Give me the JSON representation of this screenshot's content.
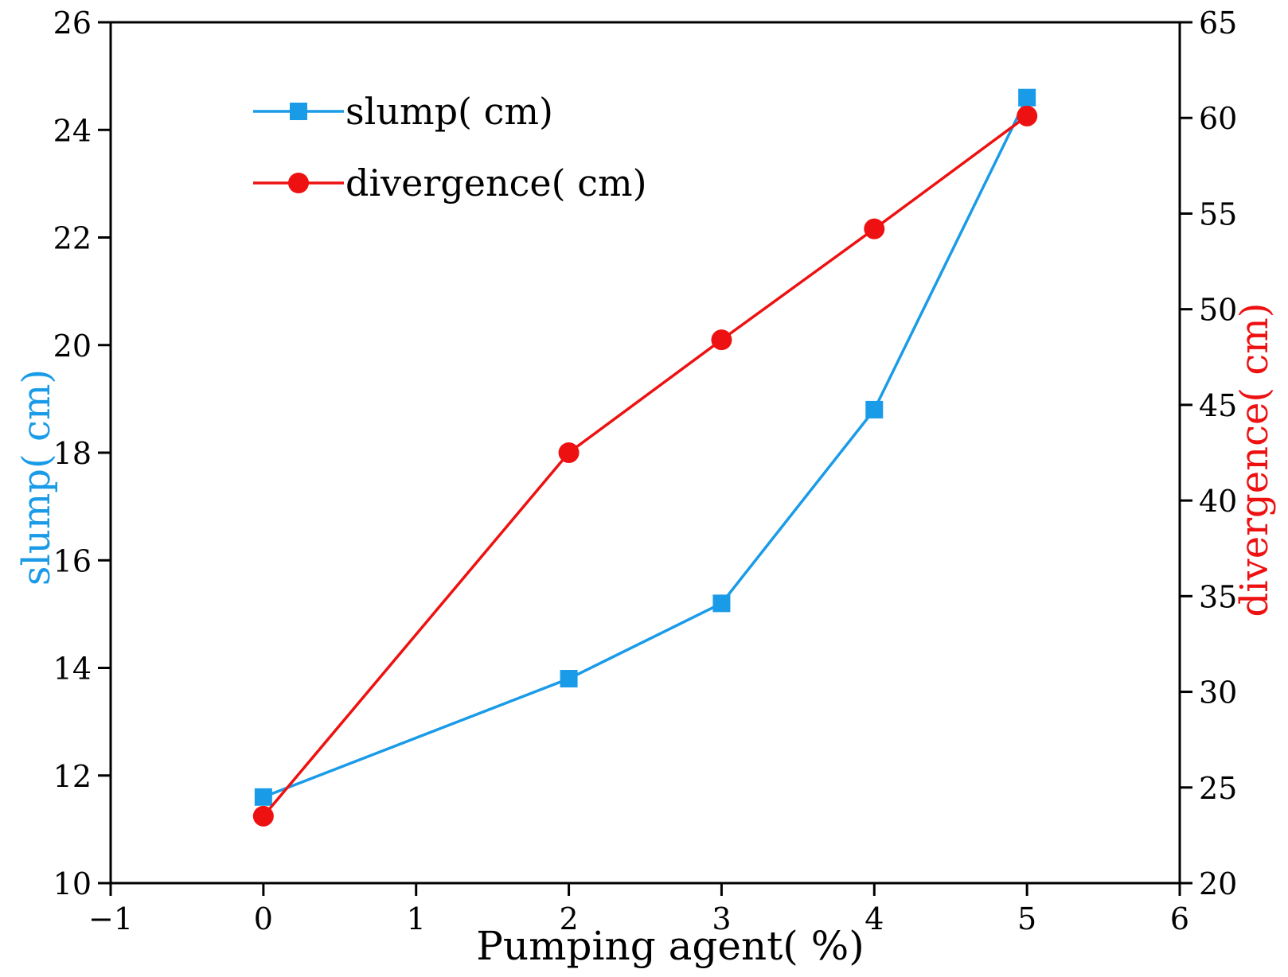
{
  "chart_data": {
    "type": "line",
    "x": [
      0,
      2,
      3,
      4,
      5
    ],
    "series": [
      {
        "name": "slump( cm)",
        "axis": "left",
        "marker": "square",
        "color": "#1a9be8",
        "values": [
          11.6,
          13.8,
          15.2,
          18.8,
          24.6
        ]
      },
      {
        "name": "divergence( cm)",
        "axis": "right",
        "marker": "circle",
        "color": "#ee1111",
        "values": [
          23.5,
          42.5,
          48.4,
          54.2,
          60.1
        ]
      }
    ],
    "xlabel": "Pumping agent( %)",
    "ylabel": "slump( cm)",
    "y2label": "divergence( cm)",
    "xlim": [
      -1,
      6
    ],
    "ylim": [
      10,
      26
    ],
    "y2lim": [
      20,
      65
    ],
    "xticks": [
      -1,
      0,
      1,
      2,
      3,
      4,
      5,
      6
    ],
    "xtick_labels": [
      "−1",
      "0",
      "1",
      "2",
      "3",
      "4",
      "5",
      "6"
    ],
    "yticks": [
      10,
      12,
      14,
      16,
      18,
      20,
      22,
      24,
      26
    ],
    "y2ticks": [
      20,
      25,
      30,
      35,
      40,
      45,
      50,
      55,
      60,
      65
    ],
    "legend_position": "top-left",
    "grid": false
  }
}
